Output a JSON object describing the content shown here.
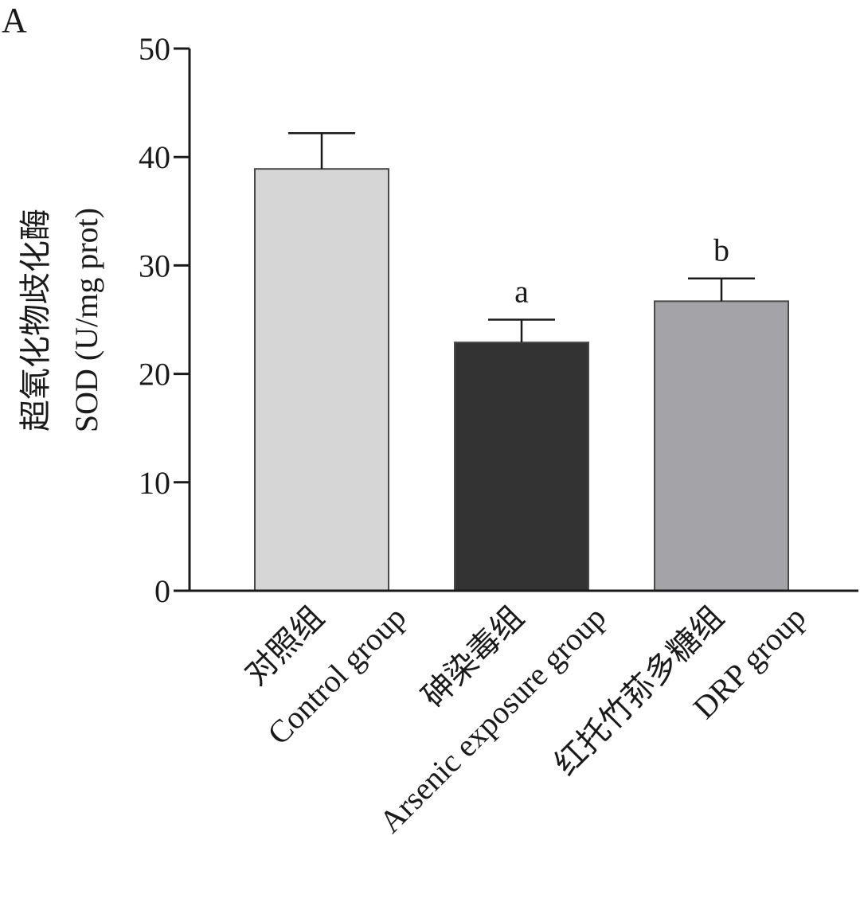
{
  "panel_label": "A",
  "chart_data": {
    "type": "bar",
    "title": "",
    "ylabel_cn": "超氧化物歧化酶",
    "ylabel_en": "SOD (U/mg prot)",
    "xlabel": "",
    "ylim": [
      0,
      50
    ],
    "yticks": [
      0,
      10,
      20,
      30,
      40,
      50
    ],
    "grid": false,
    "categories": [
      {
        "cn": "对照组",
        "en": "Control group"
      },
      {
        "cn": "砷染毒组",
        "en": "Arsenic exposure group"
      },
      {
        "cn": "红托竹荪多糖组",
        "en": "DRP group"
      }
    ],
    "values": [
      38.9,
      22.9,
      26.7
    ],
    "errors": [
      3.3,
      2.1,
      2.1
    ],
    "annotations": [
      "",
      "a",
      "b"
    ],
    "colors": [
      "#d6d6d6",
      "#333333",
      "#a4a3a8"
    ]
  }
}
